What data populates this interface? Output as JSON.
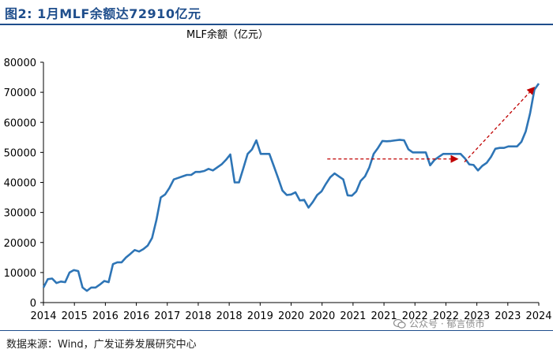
{
  "header": {
    "title": "图2: 1月MLF余额达72910亿元"
  },
  "footer": {
    "source": "数据来源：Wind，广发证券发展研究中心",
    "watermark": "公众号 · 郁言债市"
  },
  "chart_data": {
    "type": "line",
    "title": "",
    "ylabel": "MLF余额（亿元）",
    "xlabel": "",
    "ylim": [
      0,
      80000
    ],
    "yticks": [
      0,
      10000,
      20000,
      30000,
      40000,
      50000,
      60000,
      70000,
      80000
    ],
    "xticks": [
      "2014",
      "2015",
      "2016",
      "2016",
      "2017",
      "2018",
      "2018",
      "2019",
      "2020",
      "2020",
      "2021",
      "2021",
      "2022",
      "2022",
      "2023",
      "2023",
      "2024"
    ],
    "grid": false,
    "series": [
      {
        "color": "#2e75b6",
        "values": [
          5000,
          7800,
          8000,
          6500,
          7000,
          6800,
          10000,
          10800,
          10500,
          5000,
          3900,
          5000,
          5000,
          6000,
          7200,
          6800,
          12800,
          13400,
          13400,
          15000,
          16200,
          17500,
          17000,
          17800,
          19000,
          21500,
          27500,
          35000,
          36000,
          38200,
          41000,
          41500,
          42000,
          42500,
          42500,
          43500,
          43500,
          43800,
          44500,
          44000,
          45000,
          46000,
          47500,
          49300,
          40000,
          40000,
          44700,
          49500,
          51000,
          54000,
          49500,
          49500,
          49500,
          45500,
          41500,
          37300,
          35800,
          36000,
          36700,
          34000,
          34200,
          31600,
          33500,
          35800,
          37000,
          39500,
          41700,
          43000,
          42000,
          41000,
          35700,
          35600,
          37000,
          40500,
          42000,
          45000,
          49500,
          51500,
          53800,
          53700,
          53800,
          54000,
          54200,
          54000,
          51000,
          50000,
          50000,
          50000,
          50000,
          45700,
          47500,
          48500,
          49500,
          49500,
          49500,
          49500,
          49500,
          48000,
          46000,
          45800,
          44000,
          45500,
          46500,
          48500,
          51200,
          51500,
          51500,
          52000,
          52000,
          52000,
          53500,
          57000,
          63000,
          70900,
          72910
        ]
      }
    ],
    "annotations": [
      {
        "type": "arrow",
        "style": "dashed",
        "color": "#c00000",
        "from": [
          0.573,
          47800
        ],
        "to": [
          0.835,
          47800
        ]
      },
      {
        "type": "arrow",
        "style": "dashed",
        "color": "#c00000",
        "from": [
          0.85,
          46800
        ],
        "to": [
          0.99,
          71500
        ]
      }
    ]
  }
}
